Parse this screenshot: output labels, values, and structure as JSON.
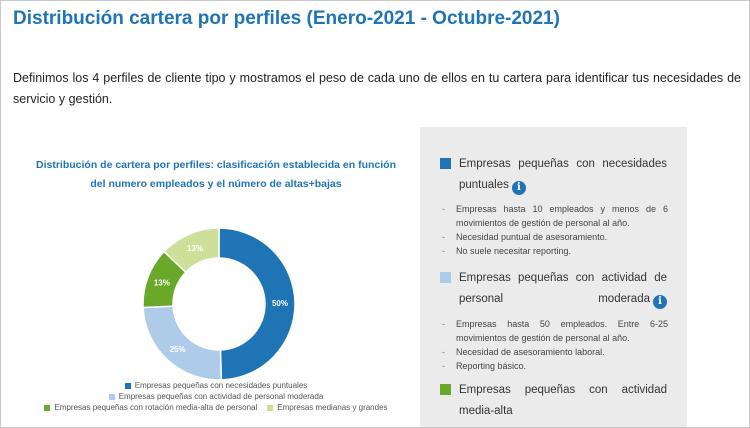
{
  "page": {
    "title": "Distribución cartera por perfiles (Enero-2021 - Octubre-2021)",
    "intro": "Definimos los 4 perfiles de cliente tipo y mostramos el peso de cada uno de ellos en tu cartera para identificar tus necesidades de servicio y gestión."
  },
  "chart_data": {
    "type": "pie",
    "title": "Distribución de cartera por perfiles: clasificación establecida en función del numero empleados y el número de altas+bajas",
    "categories": [
      "Empresas pequeñas con necesidades puntuales",
      "Empresas pequeñas con actividad de personal moderada",
      "Empresas pequeñas con rotación media-alta de personal",
      "Empresas medianas y grandes"
    ],
    "values": [
      50,
      25,
      13,
      13
    ],
    "data_labels": [
      "50%",
      "25%",
      "13%",
      "13%"
    ],
    "colors": [
      "#1f74b5",
      "#aecbea",
      "#6aa82a",
      "#cde09a"
    ],
    "donut": true,
    "legend_position": "bottom"
  },
  "profiles": [
    {
      "title": "Empresas pequeñas con necesidades puntuales",
      "color": "#1f74b5",
      "icon": "info-icon",
      "bullets": [
        "Empresas hasta 10 empleados y menos de 6 movimientos de gestión de personal al año.",
        "Necesidad puntual de asesoramiento.",
        "No suele necesitar reporting."
      ]
    },
    {
      "title": "Empresas pequeñas con actividad de personal moderada",
      "color": "#aecbea",
      "icon": "info-icon",
      "bullets": [
        "Empresas hasta 50 empleados. Entre 6-25 movimientos de gestión de personal al año.",
        "Necesidad de asesoramiento laboral.",
        "Reporting básico."
      ]
    },
    {
      "title": "Empresas pequeñas con actividad media-alta",
      "color": "#6aa82a",
      "icon": "info-icon",
      "bullets": []
    }
  ],
  "info_glyph": "i"
}
